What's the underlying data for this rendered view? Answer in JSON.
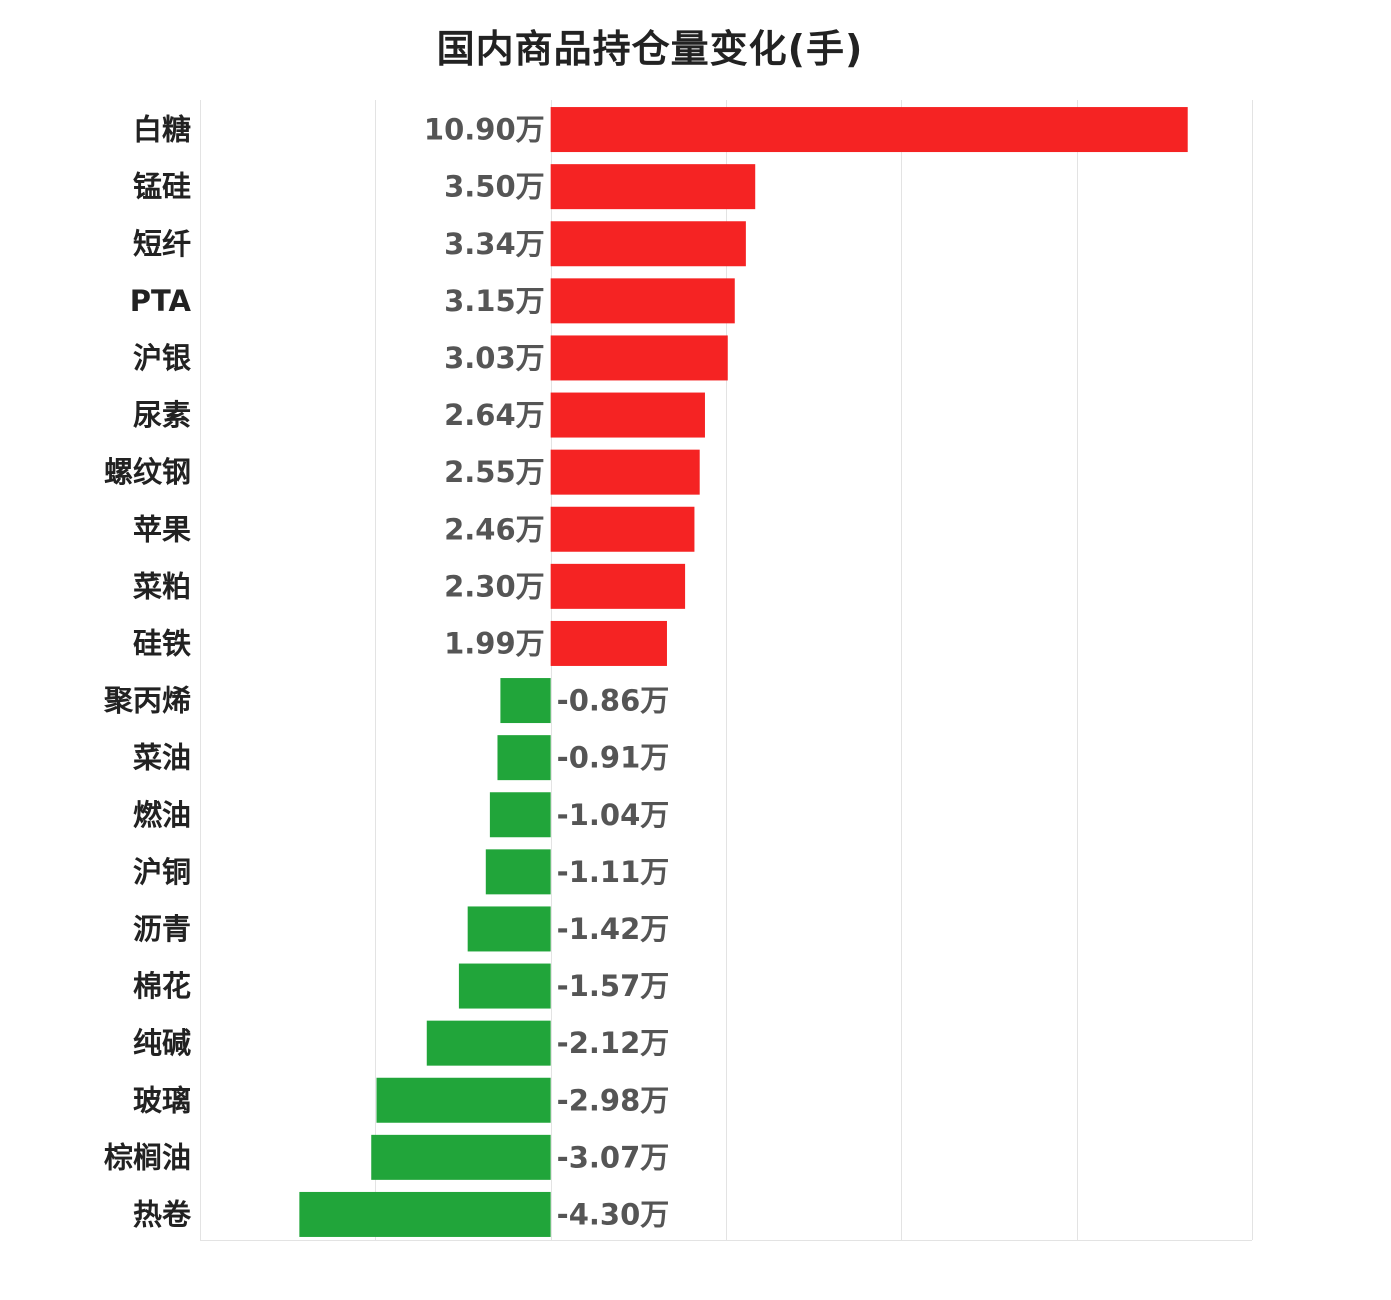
{
  "chart_data": {
    "type": "bar",
    "orientation": "horizontal",
    "title": "国内商品持仓量变化(手)",
    "categories": [
      "白糖",
      "锰硅",
      "短纤",
      "PTA",
      "沪银",
      "尿素",
      "螺纹钢",
      "苹果",
      "菜粕",
      "硅铁",
      "聚丙烯",
      "菜油",
      "燃油",
      "沪铜",
      "沥青",
      "棉花",
      "纯碱",
      "玻璃",
      "棕榈油",
      "热卷"
    ],
    "values": [
      10.9,
      3.5,
      3.34,
      3.15,
      3.03,
      2.64,
      2.55,
      2.46,
      2.3,
      1.99,
      -0.86,
      -0.91,
      -1.04,
      -1.11,
      -1.42,
      -1.57,
      -2.12,
      -2.98,
      -3.07,
      -4.3
    ],
    "value_labels": [
      "10.90万",
      "3.50万",
      "3.34万",
      "3.15万",
      "3.03万",
      "2.64万",
      "2.55万",
      "2.46万",
      "2.30万",
      "1.99万",
      "-0.86万",
      "-0.91万",
      "-1.04万",
      "-1.11万",
      "-1.42万",
      "-1.57万",
      "-2.12万",
      "-2.98万",
      "-3.07万",
      "-4.30万"
    ],
    "unit": "万",
    "xlim": [
      -6,
      12
    ],
    "grid": true,
    "colors": {
      "positive": "#f52323",
      "negative": "#21a53a"
    }
  }
}
